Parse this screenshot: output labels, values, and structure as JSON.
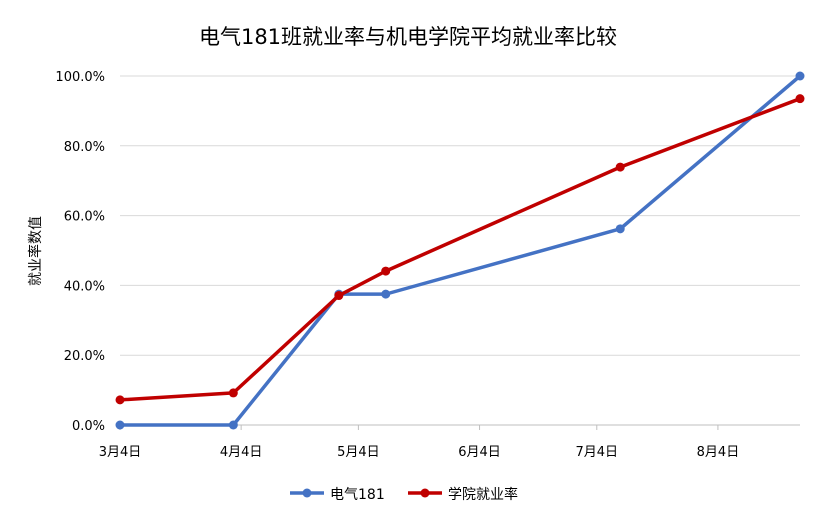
{
  "chart_data": {
    "type": "line",
    "title": "电气181班就业率与机电学院平均就业率比较",
    "xlabel": "",
    "ylabel": "就业率数值",
    "x_ticks": [
      "3月4日",
      "4月4日",
      "5月4日",
      "6月4日",
      "7月4日",
      "8月4日"
    ],
    "x_tick_dates": [
      "03-04",
      "04-04",
      "05-04",
      "06-04",
      "07-04",
      "08-04"
    ],
    "xlim": [
      "03-04",
      "08-25"
    ],
    "y_ticks": [
      "0.0%",
      "20.0%",
      "40.0%",
      "60.0%",
      "80.0%",
      "100.0%"
    ],
    "ylim": [
      0,
      100
    ],
    "grid": true,
    "legend_position": "bottom",
    "x": [
      "03-04",
      "04-02",
      "04-29",
      "05-11",
      "07-10",
      "08-25"
    ],
    "series": [
      {
        "name": "电气181",
        "color": "#4472C4",
        "values": [
          0,
          0,
          37.5,
          37.5,
          56.2,
          100
        ]
      },
      {
        "name": "学院就业率",
        "color": "#C00000",
        "values": [
          7.2,
          9.2,
          37.1,
          44.1,
          73.9,
          93.5
        ]
      }
    ]
  }
}
